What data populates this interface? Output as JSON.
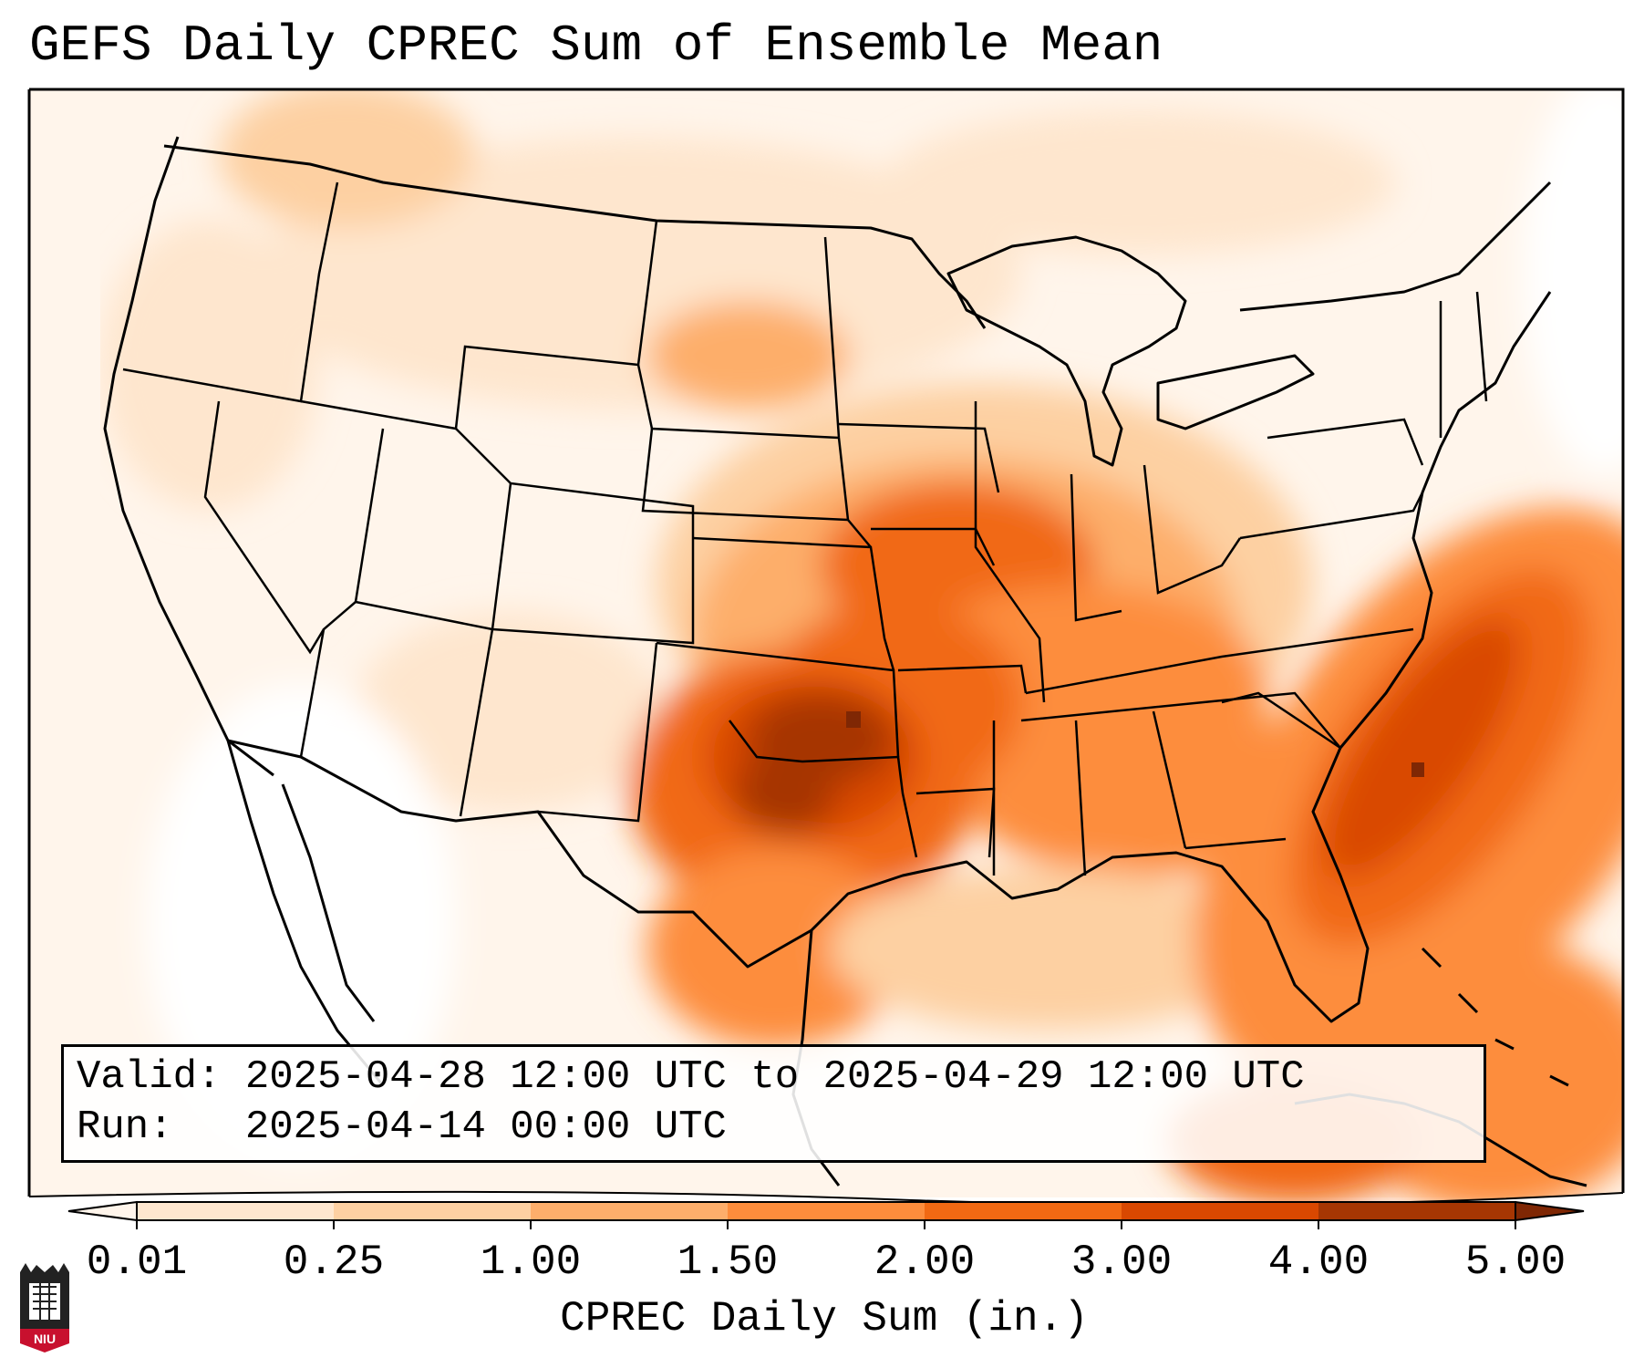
{
  "title": "GEFS Daily CPREC Sum of Ensemble Mean",
  "info": {
    "valid_line": "Valid: 2025-04-28 12:00 UTC to 2025-04-29 12:00 UTC",
    "run_line": "Run:   2025-04-14 00:00 UTC"
  },
  "colorbar": {
    "label": "CPREC Daily Sum (in.)",
    "ticks": [
      "0.01",
      "0.25",
      "1.00",
      "1.50",
      "2.00",
      "3.00",
      "4.00",
      "5.00"
    ],
    "colors": [
      "#fff5eb",
      "#fee6ce",
      "#fdd0a2",
      "#fdae6b",
      "#fd8d3c",
      "#f16913",
      "#d94801",
      "#a63603",
      "#7f2704"
    ],
    "extend": "both"
  },
  "map": {
    "projection": "lambert-conformal",
    "region": "CONUS",
    "max_area": "Oklahoma / north Texas and western Atlantic off the Southeast coast",
    "borders": "state and country lines, coastlines"
  },
  "logo": {
    "text": "NIU"
  }
}
